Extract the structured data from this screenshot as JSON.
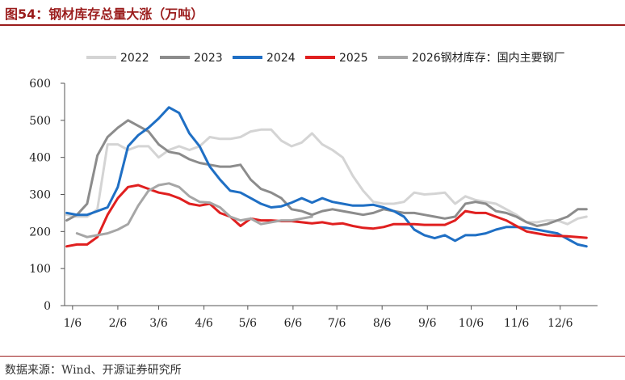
{
  "title": "图54：钢材库存总量大涨（万吨）",
  "source": "数据来源：Wind、开源证券研究所",
  "chart_data": {
    "type": "line",
    "ylim": [
      0,
      600
    ],
    "yticks": [
      0,
      100,
      200,
      300,
      400,
      500,
      600
    ],
    "xticks": [
      "1/6",
      "2/6",
      "3/6",
      "4/6",
      "5/6",
      "6/6",
      "7/6",
      "8/6",
      "9/6",
      "10/6",
      "11/6",
      "12/6"
    ],
    "xaxis_days": [
      6,
      37,
      65,
      96,
      126,
      157,
      187,
      218,
      249,
      279,
      310,
      340
    ],
    "legend_position": "top",
    "series": [
      {
        "name": "2022",
        "color": "#d4d4d4",
        "x": [
          2,
          9,
          16,
          23,
          30,
          37,
          44,
          51,
          58,
          65,
          72,
          79,
          86,
          93,
          100,
          107,
          114,
          121,
          128,
          135,
          142,
          149,
          156,
          163,
          170,
          177,
          184,
          191,
          198,
          205,
          212,
          219,
          226,
          233,
          240,
          247,
          254,
          261,
          268,
          275,
          282,
          289,
          296,
          303,
          310,
          317,
          324,
          331,
          338,
          345,
          352,
          358
        ],
        "y": [
          245,
          240,
          240,
          260,
          435,
          435,
          420,
          430,
          430,
          400,
          420,
          430,
          420,
          430,
          455,
          450,
          450,
          455,
          470,
          475,
          475,
          445,
          430,
          440,
          465,
          435,
          420,
          400,
          350,
          310,
          280,
          275,
          275,
          280,
          305,
          300,
          302,
          305,
          275,
          295,
          285,
          280,
          275,
          260,
          245,
          225,
          225,
          230,
          230,
          220,
          235,
          240
        ]
      },
      {
        "name": "2023",
        "color": "#8c8c8c",
        "x": [
          2,
          9,
          16,
          23,
          30,
          37,
          44,
          51,
          58,
          65,
          72,
          79,
          86,
          93,
          100,
          107,
          114,
          121,
          128,
          135,
          142,
          149,
          156,
          163,
          170,
          177,
          184,
          191,
          198,
          205,
          212,
          219,
          226,
          233,
          240,
          247,
          254,
          261,
          268,
          275,
          282,
          289,
          296,
          303,
          310,
          317,
          324,
          331,
          338,
          345,
          352,
          358
        ],
        "y": [
          230,
          245,
          275,
          405,
          455,
          480,
          500,
          485,
          470,
          435,
          415,
          410,
          395,
          385,
          380,
          375,
          375,
          380,
          340,
          315,
          305,
          290,
          260,
          255,
          245,
          255,
          260,
          255,
          250,
          245,
          250,
          260,
          255,
          250,
          250,
          245,
          240,
          235,
          240,
          275,
          280,
          275,
          255,
          250,
          240,
          225,
          215,
          220,
          230,
          240,
          260,
          260
        ]
      },
      {
        "name": "2024",
        "color": "#1f6fc4",
        "x": [
          2,
          9,
          16,
          23,
          30,
          37,
          44,
          51,
          58,
          65,
          72,
          79,
          86,
          93,
          100,
          107,
          114,
          121,
          128,
          135,
          142,
          149,
          156,
          163,
          170,
          177,
          184,
          191,
          198,
          205,
          212,
          219,
          226,
          233,
          240,
          247,
          254,
          261,
          268,
          275,
          282,
          289,
          296,
          303,
          310,
          317,
          324,
          331,
          338,
          345,
          352,
          358
        ],
        "y": [
          250,
          245,
          245,
          255,
          265,
          320,
          430,
          460,
          480,
          505,
          535,
          520,
          465,
          430,
          375,
          340,
          310,
          305,
          290,
          275,
          265,
          268,
          278,
          290,
          278,
          290,
          280,
          275,
          270,
          270,
          272,
          265,
          255,
          240,
          205,
          190,
          182,
          190,
          175,
          190,
          190,
          195,
          205,
          212,
          212,
          210,
          205,
          200,
          195,
          180,
          165,
          160
        ]
      },
      {
        "name": "2025",
        "color": "#e01f1f",
        "x": [
          2,
          9,
          16,
          23,
          30,
          37,
          44,
          51,
          58,
          65,
          72,
          79,
          86,
          93,
          100,
          107,
          114,
          121,
          128,
          135,
          142,
          149,
          156,
          163,
          170,
          177,
          184,
          191,
          198,
          205,
          212,
          219,
          226,
          233,
          240,
          247,
          254,
          261,
          268,
          275,
          282,
          289,
          296,
          303,
          310,
          317,
          324,
          331,
          338,
          345,
          352,
          358
        ],
        "y": [
          160,
          165,
          165,
          185,
          245,
          290,
          320,
          325,
          315,
          305,
          300,
          290,
          275,
          270,
          275,
          250,
          240,
          215,
          235,
          230,
          230,
          228,
          228,
          225,
          222,
          225,
          220,
          222,
          215,
          210,
          208,
          212,
          220,
          220,
          220,
          218,
          218,
          218,
          230,
          255,
          250,
          250,
          240,
          230,
          215,
          200,
          195,
          190,
          188,
          187,
          185,
          183
        ]
      },
      {
        "name": "2026钢材库存：国内主要钢厂",
        "color": "#a6a6a6",
        "x": [
          9,
          16,
          23,
          30,
          37,
          44,
          51,
          58,
          65,
          72,
          79,
          86,
          93,
          100,
          107,
          114,
          121,
          128,
          135,
          142,
          149,
          156,
          163,
          170
        ],
        "y": [
          195,
          185,
          190,
          195,
          205,
          220,
          270,
          310,
          325,
          330,
          320,
          295,
          280,
          278,
          265,
          240,
          230,
          235,
          220,
          225,
          230,
          230,
          235,
          240
        ]
      }
    ]
  }
}
